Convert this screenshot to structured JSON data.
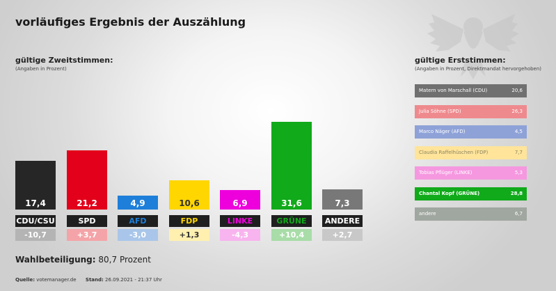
{
  "title": "vorläufiges Ergebnis der Auszählung",
  "left_section": {
    "title": "gültige Zweitstimmen:",
    "subtitle": "(Angaben in Prozent)"
  },
  "right_section": {
    "title": "gültige Erststimmen:",
    "subtitle": "(Angaben in Prozent, Direktmandat hervorgehoben)"
  },
  "turnout": {
    "label": "Wahlbeteiligung:",
    "value": "80,7 Prozent"
  },
  "footer": {
    "source_label": "Quelle:",
    "source": "votemanager.de",
    "stand_label": "Stand:",
    "stand": "26.09.2021 - 21:37 Uhr"
  },
  "chart_data": [
    {
      "type": "bar",
      "title": "gültige Zweitstimmen:",
      "categories": [
        "CDU/CSU",
        "SPD",
        "AFD",
        "FDP",
        "LINKE",
        "GRÜNE",
        "ANDERE"
      ],
      "values": [
        17.4,
        21.2,
        4.9,
        10.6,
        6.9,
        31.6,
        7.3
      ],
      "value_labels": [
        "17,4",
        "21,2",
        "4,9",
        "10,6",
        "6,9",
        "31,6",
        "7,3"
      ],
      "diff_labels": [
        "-10,7",
        "+3,7",
        "-3,0",
        "+1,3",
        "-4,3",
        "+10,4",
        "+2,7"
      ],
      "colors": [
        "#262626",
        "#e2001a",
        "#1d7fd9",
        "#ffd600",
        "#ee00dd",
        "#10aa1a",
        "#787878"
      ],
      "diff_colors": [
        "#b4b4b4",
        "#f4a4a8",
        "#a9c6ea",
        "#fff0b0",
        "#f8b4ee",
        "#a8dca8",
        "#c8c8c8"
      ],
      "label_colors": [
        "#ffffff",
        "#ffffff",
        "#1d7fd9",
        "#ffd600",
        "#ee00dd",
        "#10aa1a",
        "#ffffff"
      ]
    },
    {
      "type": "bar",
      "title": "gültige Erststimmen:",
      "categories": [
        "Matern von Marschall (CDU)",
        "Julia Söhne (SPD)",
        "Marco Näger (AFD)",
        "Claudia Raffelhüschen (FDP)",
        "Tobias Pflüger (LINKE)",
        "Chantal Kopf (GRÜNE)",
        "andere"
      ],
      "values": [
        20.6,
        26.3,
        4.5,
        7.7,
        5.3,
        28.8,
        6.7
      ],
      "value_labels": [
        "20,6",
        "26,3",
        "4,5",
        "7,7",
        "5,3",
        "28,8",
        "6,7"
      ],
      "colors": [
        "#707070",
        "#ee8a8e",
        "#8ea2d8",
        "#ffe49a",
        "#f598e0",
        "#10aa1a",
        "#a0a6a0"
      ],
      "text_colors": [
        "#ffffff",
        "#ffffff",
        "#ffffff",
        "#8a8460",
        "#ffffff",
        "#ffffff",
        "#ffffff"
      ],
      "highlighted": "Chantal Kopf (GRÜNE)"
    }
  ]
}
